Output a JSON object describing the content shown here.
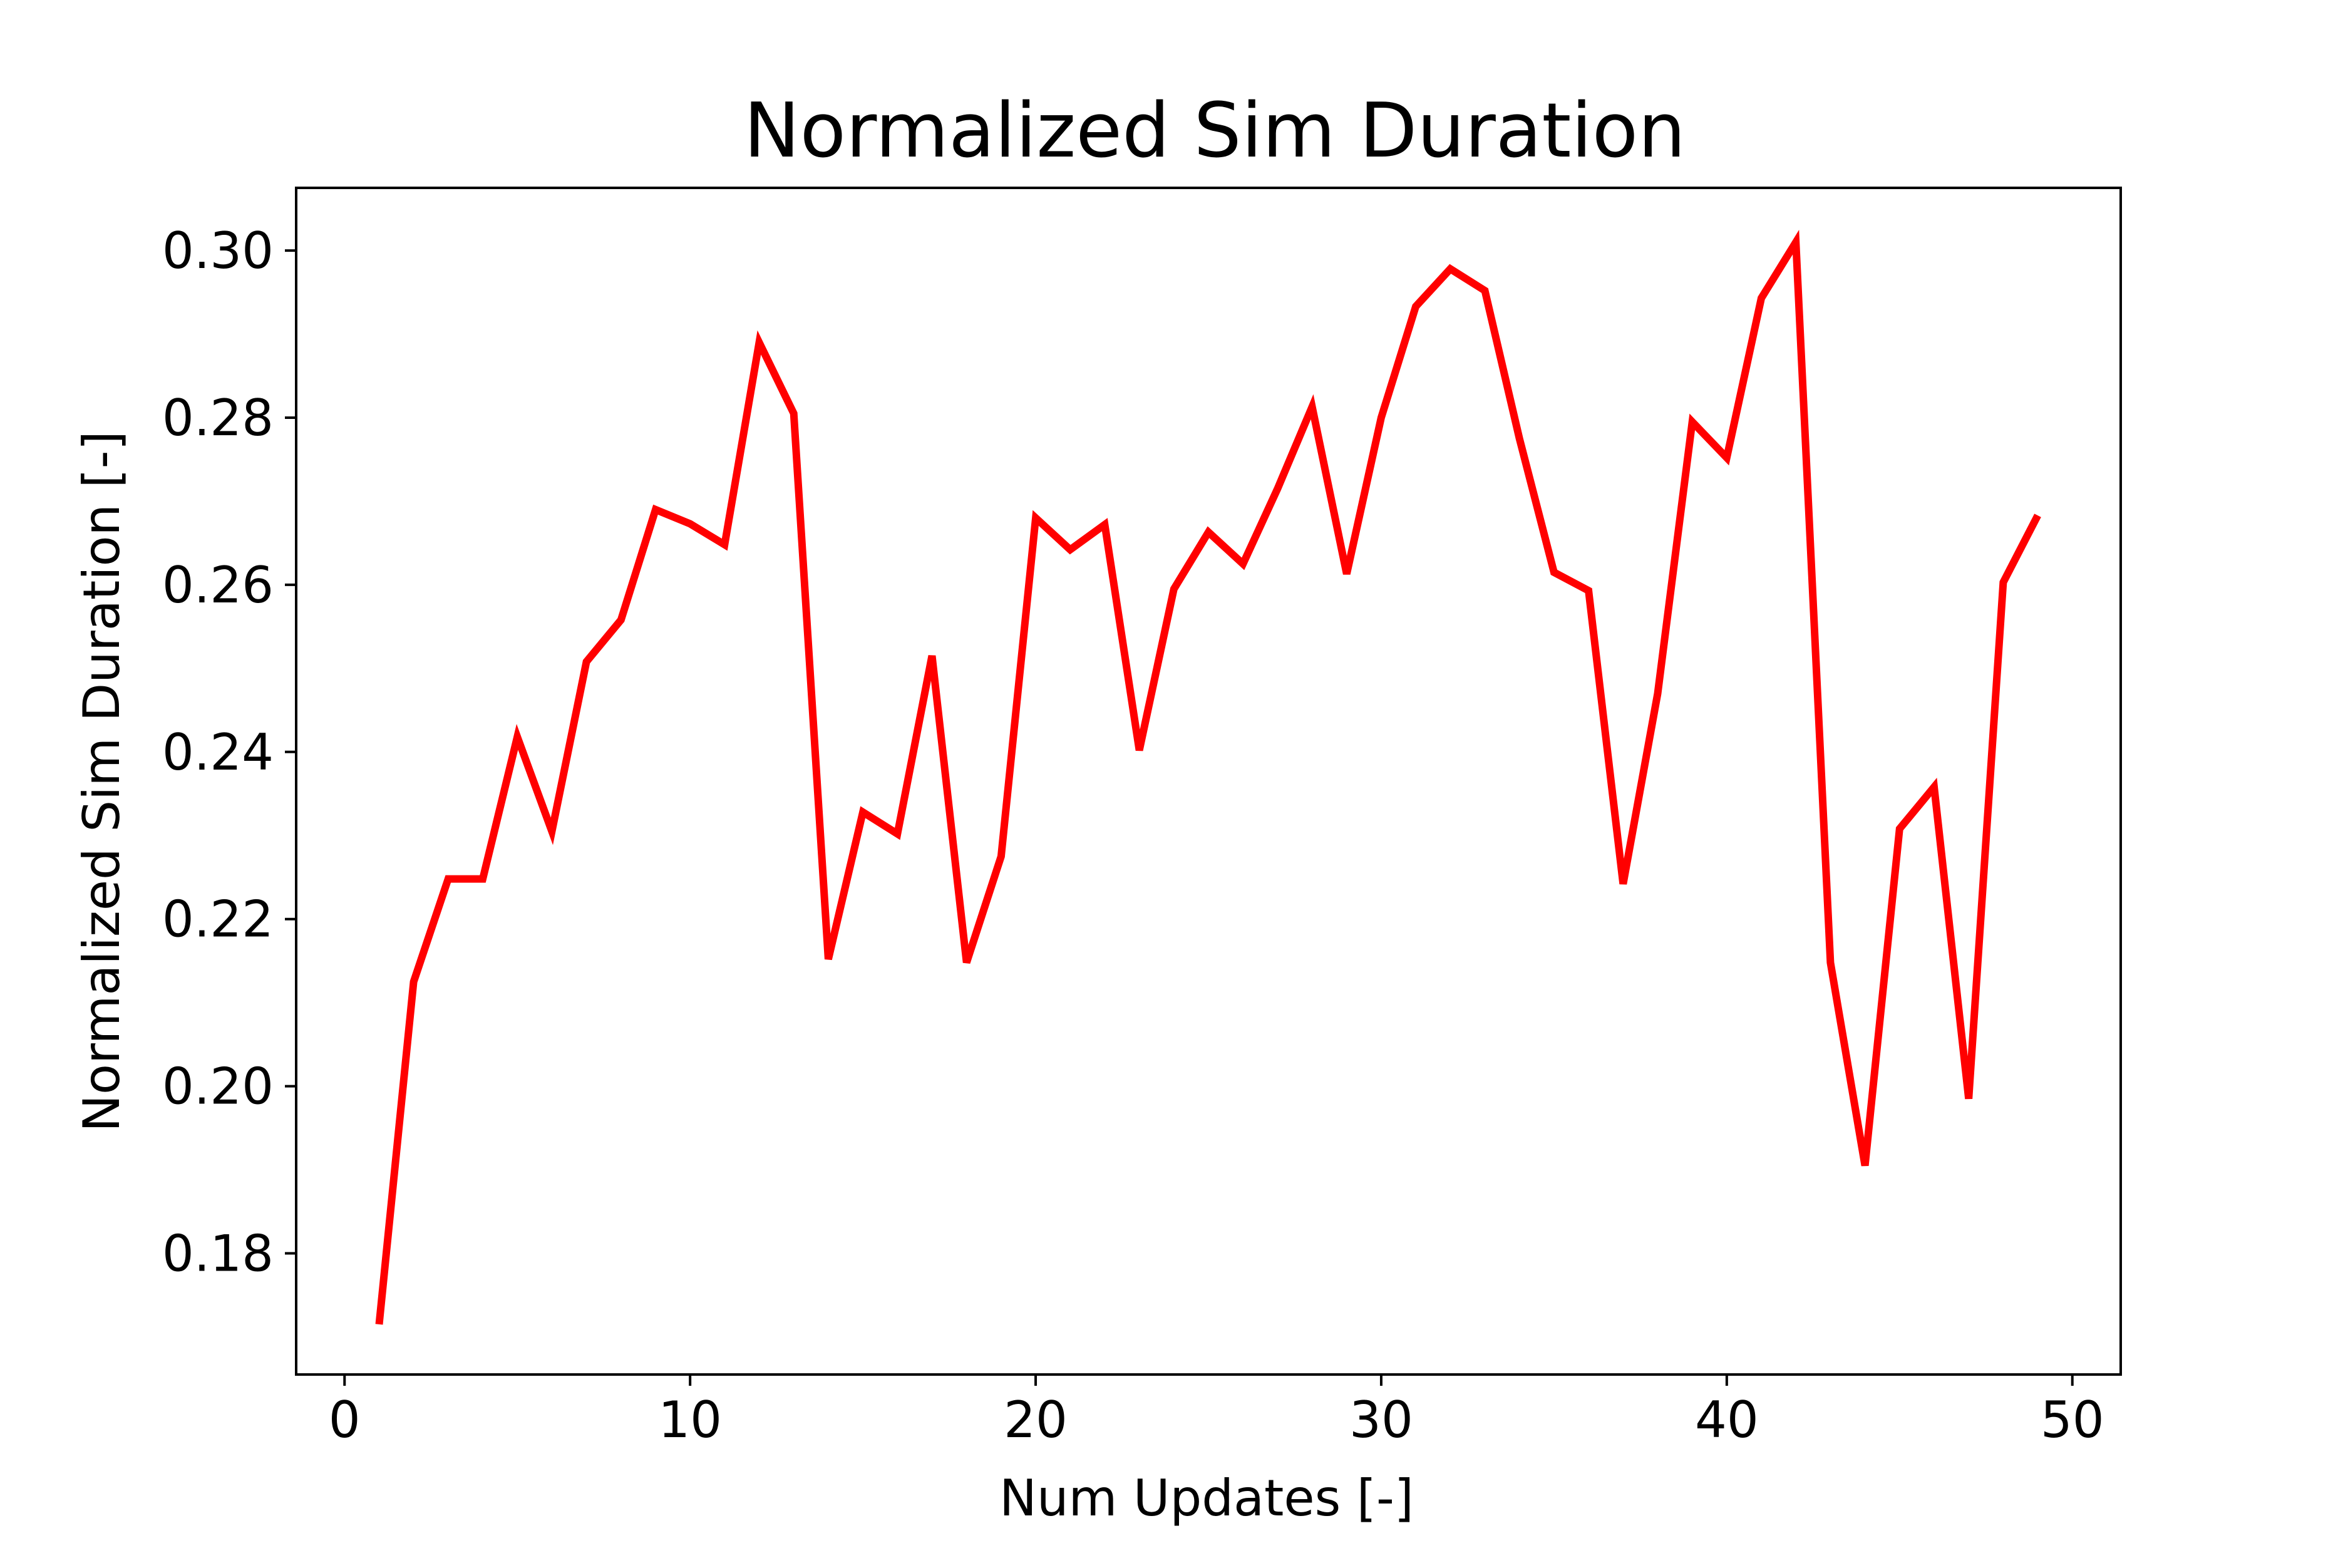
{
  "chart_data": {
    "type": "line",
    "title": "Normalized Sim Duration",
    "xlabel": "Num Updates [-]",
    "ylabel": "Normalized Sim Duration [-]",
    "xlim": [
      -1.4,
      51.4
    ],
    "ylim": [
      0.1655,
      0.3075
    ],
    "xticks": [
      0,
      10,
      20,
      30,
      40,
      50
    ],
    "xtick_labels": [
      "0",
      "10",
      "20",
      "30",
      "40",
      "50"
    ],
    "yticks": [
      0.18,
      0.2,
      0.22,
      0.24,
      0.26,
      0.28,
      0.3
    ],
    "ytick_labels": [
      "0.18",
      "0.20",
      "0.22",
      "0.24",
      "0.26",
      "0.28",
      "0.30"
    ],
    "grid": false,
    "legend": "none",
    "series": [
      {
        "color": "#ff0000",
        "x": [
          1,
          2,
          3,
          4,
          5,
          6,
          7,
          8,
          9,
          10,
          11,
          12,
          13,
          14,
          15,
          16,
          17,
          18,
          19,
          20,
          21,
          22,
          23,
          24,
          25,
          26,
          27,
          28,
          29,
          30,
          31,
          32,
          33,
          34,
          35,
          36,
          37,
          38,
          39,
          40,
          41,
          42,
          43,
          44,
          45,
          46,
          47,
          48,
          49
        ],
        "values": [
          0.1715,
          0.2125,
          0.2248,
          0.2248,
          0.2418,
          0.2305,
          0.2508,
          0.2558,
          0.269,
          0.2673,
          0.2648,
          0.289,
          0.2805,
          0.2152,
          0.2328,
          0.2302,
          0.2515,
          0.2148,
          0.2275,
          0.268,
          0.2642,
          0.2672,
          0.2402,
          0.2595,
          0.2663,
          0.2625,
          0.2715,
          0.2813,
          0.2613,
          0.28,
          0.2933,
          0.2978,
          0.2952,
          0.2775,
          0.2615,
          0.2593,
          0.2242,
          0.247,
          0.2795,
          0.2752,
          0.2943,
          0.301,
          0.2148,
          0.1905,
          0.2308,
          0.2358,
          0.1985,
          0.2603,
          0.2683
        ]
      }
    ]
  }
}
